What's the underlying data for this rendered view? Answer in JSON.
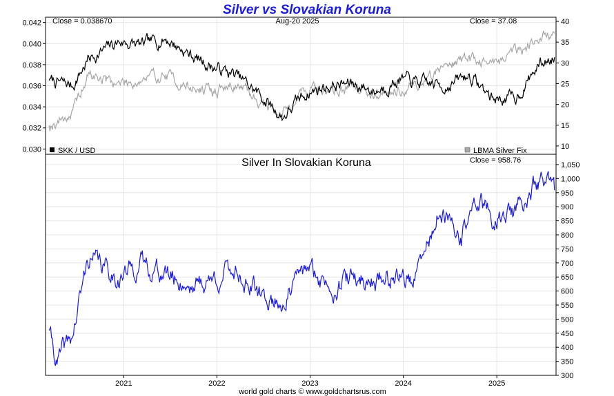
{
  "title": "Silver vs Slovakian Koruna",
  "footer": "world gold charts © www.goldchartsrus.com",
  "colors": {
    "title": "#1a1ae6",
    "skk": "#000000",
    "silver_usd": "#a8a8a8",
    "silver_skk": "#1a1ae6"
  },
  "top_panel": {
    "close_left": "Close = 0.038670",
    "date": "Aug-20  2025",
    "close_right": "Close = 37.08",
    "legend_left": "SKK / USD",
    "legend_right": "LBMA Silver Fix",
    "left_ticks": [
      "0.030",
      "0.032",
      "0.034",
      "0.036",
      "0.038",
      "0.040",
      "0.042"
    ],
    "right_ticks": [
      "10",
      "15",
      "20",
      "25",
      "30",
      "35",
      "40"
    ]
  },
  "bottom_panel": {
    "subtitle": "Silver In Slovakian Koruna",
    "close": "Close = 958.76",
    "y_ticks": [
      "300",
      "350",
      "400",
      "450",
      "500",
      "550",
      "600",
      "650",
      "700",
      "750",
      "800",
      "850",
      "900",
      "950",
      "1,000",
      "1,050"
    ]
  },
  "x_ticks": [
    "2021",
    "2022",
    "2023",
    "2024",
    "2025"
  ],
  "chart_data": [
    {
      "type": "line",
      "title": "Silver vs Slovakian Koruna",
      "x": [
        "2020-03",
        "2020-06",
        "2020-08",
        "2020-12",
        "2021-03",
        "2021-06",
        "2021-09",
        "2021-12",
        "2022-03",
        "2022-06",
        "2022-09",
        "2022-12",
        "2023-03",
        "2023-06",
        "2023-09",
        "2023-12",
        "2024-03",
        "2024-06",
        "2024-09",
        "2024-12",
        "2025-03",
        "2025-06",
        "2025-08"
      ],
      "series": [
        {
          "name": "SKK / USD",
          "axis": "left",
          "ylim": [
            0.03,
            0.042
          ],
          "values": [
            0.0365,
            0.036,
            0.0385,
            0.0402,
            0.0398,
            0.0405,
            0.039,
            0.0378,
            0.037,
            0.0352,
            0.033,
            0.0353,
            0.036,
            0.0362,
            0.0355,
            0.0366,
            0.0362,
            0.036,
            0.037,
            0.0348,
            0.0348,
            0.038,
            0.0387
          ]
        },
        {
          "name": "LBMA Silver Fix",
          "axis": "right",
          "ylim": [
            10,
            40
          ],
          "values": [
            15,
            18,
            27,
            25,
            26,
            27,
            24,
            23,
            25,
            21,
            18,
            24,
            23,
            24,
            23,
            24,
            25,
            30,
            31,
            30,
            33,
            36,
            37.08
          ]
        }
      ]
    },
    {
      "type": "line",
      "title": "Silver In Slovakian Koruna",
      "x": [
        "2020-03",
        "2020-04",
        "2020-06",
        "2020-08",
        "2020-12",
        "2021-03",
        "2021-06",
        "2021-09",
        "2021-12",
        "2022-03",
        "2022-06",
        "2022-09",
        "2022-12",
        "2023-03",
        "2023-06",
        "2023-09",
        "2023-12",
        "2024-02",
        "2024-05",
        "2024-08",
        "2024-10",
        "2024-12",
        "2025-03",
        "2025-06",
        "2025-08"
      ],
      "series": [
        {
          "name": "",
          "values": [
            460,
            345,
            440,
            720,
            650,
            700,
            660,
            620,
            640,
            680,
            580,
            560,
            680,
            620,
            640,
            640,
            660,
            630,
            870,
            790,
            930,
            860,
            880,
            990,
            958.76
          ]
        }
      ],
      "ylim": [
        300,
        1050
      ]
    }
  ]
}
